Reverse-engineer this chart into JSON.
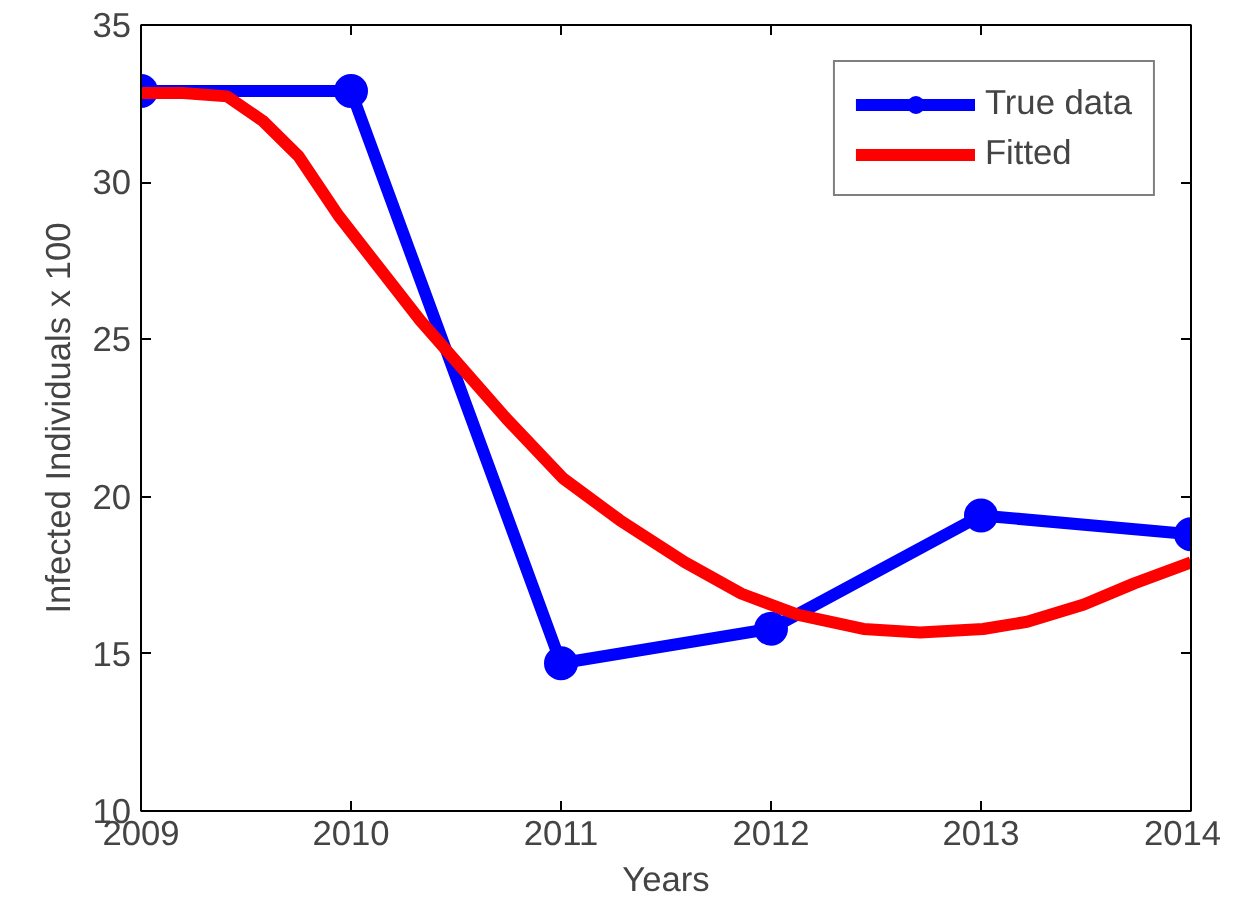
{
  "chart_data": {
    "type": "line",
    "xlabel": "Years",
    "ylabel": "Infected Individuals x 100",
    "xlim": [
      2009,
      2014
    ],
    "xticks": [
      2009,
      2010,
      2011,
      2012,
      2013,
      2014
    ],
    "ylim": [
      10,
      35
    ],
    "yticks": [
      10,
      15,
      20,
      25,
      30,
      35
    ],
    "grid": false,
    "legend": "top right",
    "series": [
      {
        "name": "True data",
        "color": "#0000ff",
        "marker": "circle",
        "x": [
          2009,
          2010,
          2011,
          2012,
          2013,
          2014
        ],
        "values": [
          32.9,
          32.9,
          14.7,
          15.8,
          19.4,
          18.8
        ]
      },
      {
        "name": "Fitted",
        "color": "#ff0000",
        "marker": "none",
        "x": [
          2009,
          2009.2,
          2009.41,
          2009.58,
          2009.75,
          2009.94,
          2010.33,
          2010.74,
          2011.01,
          2011.28,
          2011.59,
          2011.86,
          2012.13,
          2012.44,
          2012.71,
          2013.01,
          2013.22,
          2013.49,
          2013.73,
          2014
        ],
        "values": [
          32.84,
          32.84,
          32.73,
          31.95,
          30.83,
          28.94,
          25.6,
          22.48,
          20.58,
          19.25,
          17.91,
          16.91,
          16.24,
          15.79,
          15.68,
          15.79,
          16.02,
          16.57,
          17.24,
          17.91
        ]
      }
    ]
  }
}
